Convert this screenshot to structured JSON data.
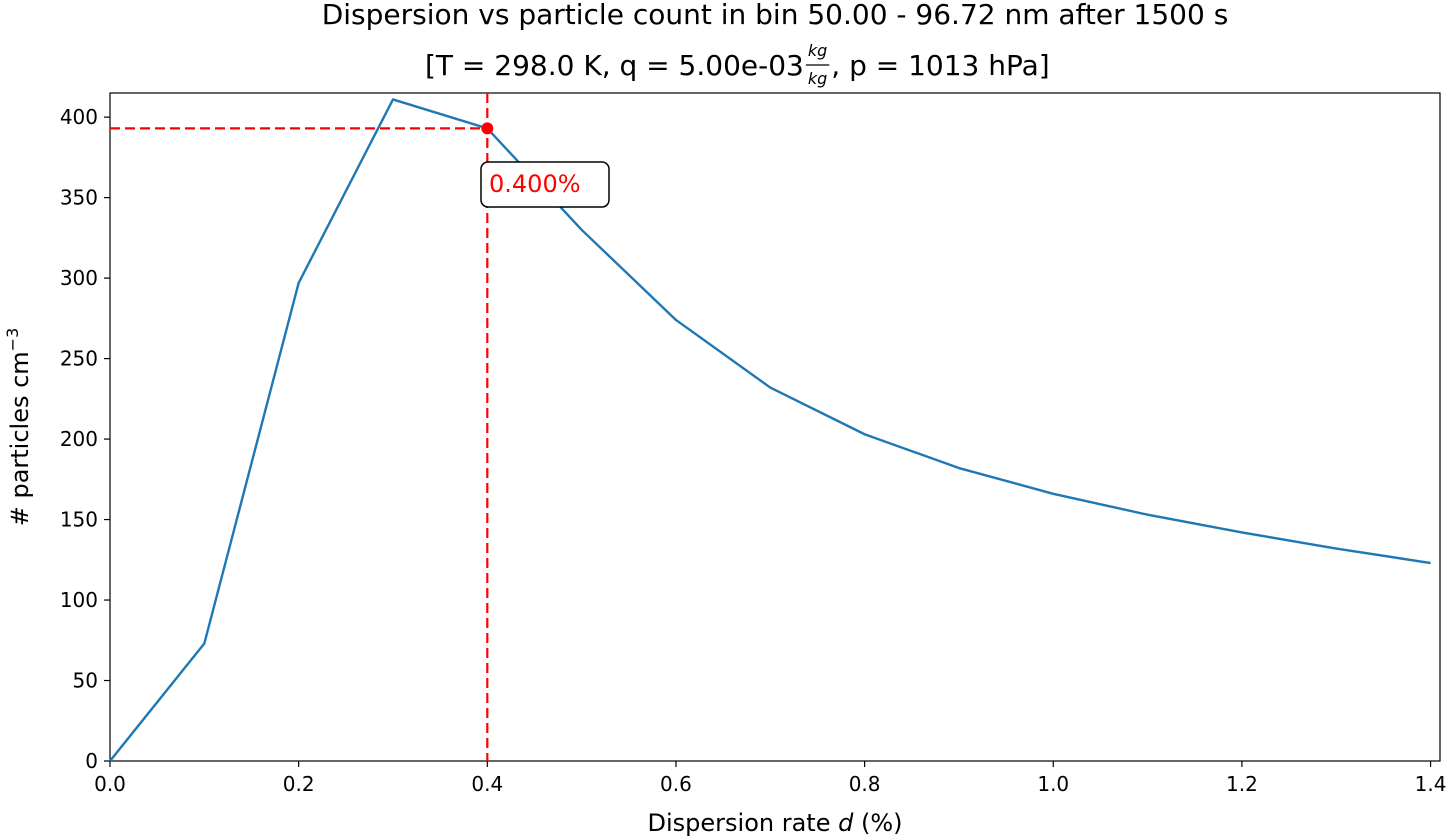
{
  "chart_data": {
    "type": "line",
    "title": "Dispersion vs particle count in bin 50.00 - 96.72 nm after 1500 s",
    "subtitle": {
      "prefix": "[T = 298.0 K, q = 5.00e-03 ",
      "fraction_numerator": "kg",
      "fraction_denominator": "kg",
      "suffix": ", p = 1013 hPa]"
    },
    "xlabel": {
      "prefix": "Dispersion rate ",
      "variable": "d",
      "suffix": " (%)"
    },
    "ylabel": {
      "main": "# particles cm",
      "superscript": "−3"
    },
    "xlim": [
      0.0,
      1.41
    ],
    "ylim": [
      0,
      415
    ],
    "xticks": [
      0.0,
      0.2,
      0.4,
      0.6,
      0.8,
      1.0,
      1.2,
      1.4
    ],
    "xtick_labels": [
      "0.0",
      "0.2",
      "0.4",
      "0.6",
      "0.8",
      "1.0",
      "1.2",
      "1.4"
    ],
    "yticks": [
      0,
      50,
      100,
      150,
      200,
      250,
      300,
      350,
      400
    ],
    "ytick_labels": [
      "0",
      "50",
      "100",
      "150",
      "200",
      "250",
      "300",
      "350",
      "400"
    ],
    "grid": false,
    "series": [
      {
        "color": "#1f77b4",
        "x": [
          0.0,
          0.1,
          0.2,
          0.3,
          0.4,
          0.5,
          0.6,
          0.7,
          0.8,
          0.9,
          1.0,
          1.1,
          1.2,
          1.3,
          1.4
        ],
        "y": [
          0,
          73,
          297,
          411,
          393,
          330,
          274,
          232,
          203,
          182,
          166,
          153,
          142,
          132,
          123
        ]
      }
    ],
    "annotation": {
      "x": 0.4,
      "y": 393,
      "label": "0.400%",
      "color": "#ff0000"
    }
  }
}
